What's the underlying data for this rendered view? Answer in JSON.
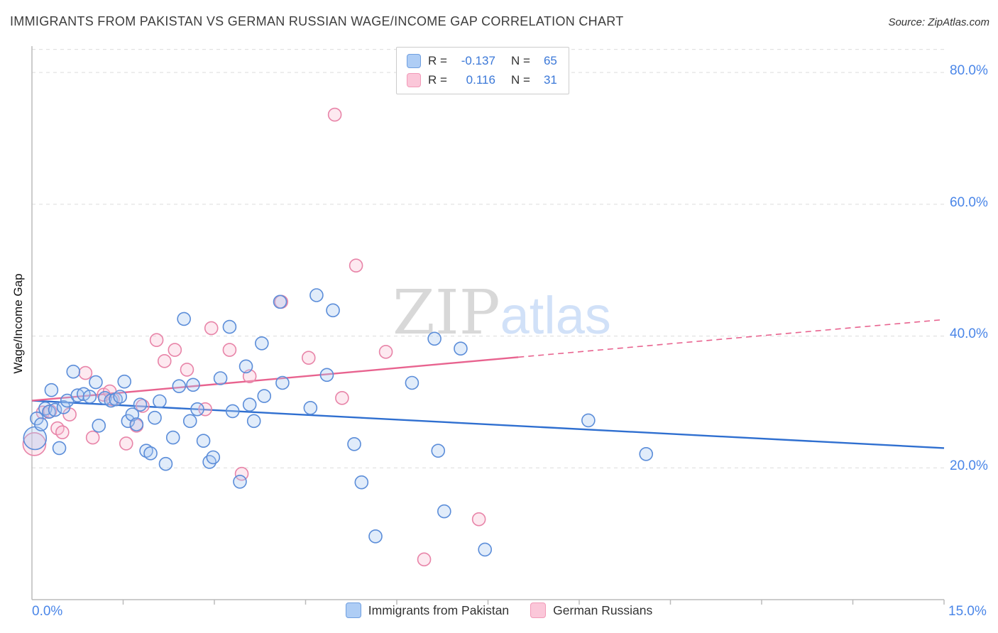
{
  "header": {
    "title": "IMMIGRANTS FROM PAKISTAN VS GERMAN RUSSIAN WAGE/INCOME GAP CORRELATION CHART",
    "source": "Source: ZipAtlas.com"
  },
  "watermark": {
    "part1": "ZIP",
    "part2": "atlas"
  },
  "stats_legend": {
    "rows": [
      {
        "r_label": "R =",
        "r_value": "-0.137",
        "n_label": "N =",
        "n_value": "65"
      },
      {
        "r_label": "R =",
        "r_value": "0.116",
        "n_label": "N =",
        "n_value": "31"
      }
    ]
  },
  "axes": {
    "ylabel": "Wage/Income Gap",
    "x_first_label": "0.0%",
    "x_last_label": "15.0%",
    "y_ticks": [
      {
        "value": 80,
        "label": "80.0%"
      },
      {
        "value": 60,
        "label": "60.0%"
      },
      {
        "value": 40,
        "label": "40.0%"
      },
      {
        "value": 20,
        "label": "20.0%"
      }
    ]
  },
  "bottom_legend": [
    {
      "label": "Immigrants from Pakistan"
    },
    {
      "label": "German Russians"
    }
  ],
  "colors": {
    "accent_text": "#3B78D8",
    "axis_tick_text": "#4A86E8",
    "grid": "#DCDCDC",
    "axis_line": "#BBBBBB",
    "blue_fill": "#A8C8F0",
    "blue_stroke": "#5B8DD9",
    "pink_fill": "#F9C0D4",
    "pink_stroke": "#E884A8",
    "trend_blue": "#2F6FD0",
    "trend_pink": "#E8638F",
    "watermark_zip": "#D2D2D2",
    "watermark_atlas": "#CADCF7"
  },
  "chart_data": {
    "type": "scatter",
    "title": "IMMIGRANTS FROM PAKISTAN VS GERMAN RUSSIAN WAGE/INCOME GAP CORRELATION CHART",
    "xlabel": "",
    "ylabel": "Wage/Income Gap",
    "xlim": [
      0,
      15
    ],
    "ylim": [
      0,
      84
    ],
    "grid": true,
    "legend_position": "bottom",
    "series": [
      {
        "name": "Immigrants from Pakistan",
        "R": -0.137,
        "N": 65,
        "fill": "#A8C8F0",
        "stroke": "#5B8DD9",
        "points": [
          [
            0.05,
            24.5,
            16
          ],
          [
            0.08,
            27.5,
            9
          ],
          [
            0.15,
            26.6,
            9
          ],
          [
            0.22,
            29.0,
            9
          ],
          [
            0.28,
            28.5,
            9
          ],
          [
            0.32,
            31.8,
            9
          ],
          [
            0.38,
            28.8,
            9
          ],
          [
            0.45,
            23.0,
            9
          ],
          [
            0.52,
            29.2,
            9
          ],
          [
            0.58,
            30.2,
            9
          ],
          [
            0.68,
            34.6,
            9
          ],
          [
            0.75,
            31.0,
            9
          ],
          [
            0.85,
            31.2,
            9
          ],
          [
            0.95,
            30.8,
            9
          ],
          [
            1.05,
            33.0,
            9
          ],
          [
            1.1,
            26.4,
            9
          ],
          [
            1.2,
            30.6,
            9
          ],
          [
            1.3,
            30.2,
            9
          ],
          [
            1.38,
            30.4,
            9
          ],
          [
            1.45,
            30.8,
            9
          ],
          [
            1.52,
            33.1,
            9
          ],
          [
            1.58,
            27.1,
            9
          ],
          [
            1.65,
            28.1,
            9
          ],
          [
            1.72,
            26.6,
            9
          ],
          [
            1.78,
            29.6,
            9
          ],
          [
            1.88,
            22.6,
            9
          ],
          [
            1.95,
            22.2,
            9
          ],
          [
            2.02,
            27.6,
            9
          ],
          [
            2.1,
            30.1,
            9
          ],
          [
            2.2,
            20.6,
            9
          ],
          [
            2.32,
            24.6,
            9
          ],
          [
            2.42,
            32.4,
            9
          ],
          [
            2.5,
            42.6,
            9
          ],
          [
            2.6,
            27.1,
            9
          ],
          [
            2.65,
            32.6,
            9
          ],
          [
            2.72,
            28.9,
            9
          ],
          [
            2.82,
            24.1,
            9
          ],
          [
            2.92,
            20.9,
            9
          ],
          [
            2.98,
            21.6,
            9
          ],
          [
            3.1,
            33.6,
            9
          ],
          [
            3.25,
            41.4,
            9
          ],
          [
            3.3,
            28.6,
            9
          ],
          [
            3.42,
            17.9,
            9
          ],
          [
            3.52,
            35.4,
            9
          ],
          [
            3.58,
            29.6,
            9
          ],
          [
            3.65,
            27.1,
            9
          ],
          [
            3.78,
            38.9,
            9
          ],
          [
            3.82,
            30.9,
            9
          ],
          [
            4.08,
            45.2,
            9
          ],
          [
            4.12,
            32.9,
            9
          ],
          [
            4.58,
            29.1,
            9
          ],
          [
            4.68,
            46.2,
            9
          ],
          [
            4.85,
            34.1,
            9
          ],
          [
            4.95,
            43.9,
            9
          ],
          [
            5.3,
            23.6,
            9
          ],
          [
            5.42,
            17.8,
            9
          ],
          [
            5.65,
            9.6,
            9
          ],
          [
            6.25,
            32.9,
            9
          ],
          [
            6.62,
            39.6,
            9
          ],
          [
            6.68,
            22.6,
            9
          ],
          [
            6.78,
            13.4,
            9
          ],
          [
            7.05,
            38.1,
            9
          ],
          [
            7.45,
            7.6,
            9
          ],
          [
            9.15,
            27.2,
            9
          ],
          [
            10.1,
            22.1,
            9
          ]
        ]
      },
      {
        "name": "German Russians",
        "R": 0.116,
        "N": 31,
        "fill": "#F9C0D4",
        "stroke": "#E884A8",
        "points": [
          [
            0.04,
            23.6,
            16
          ],
          [
            0.18,
            28.4,
            9
          ],
          [
            0.3,
            28.6,
            9
          ],
          [
            0.42,
            26.0,
            9
          ],
          [
            0.5,
            25.4,
            9
          ],
          [
            0.62,
            28.1,
            9
          ],
          [
            0.88,
            34.4,
            9
          ],
          [
            1.0,
            24.6,
            9
          ],
          [
            1.18,
            31.1,
            9
          ],
          [
            1.28,
            31.6,
            9
          ],
          [
            1.33,
            30.4,
            9
          ],
          [
            1.55,
            23.7,
            9
          ],
          [
            1.72,
            26.4,
            9
          ],
          [
            1.82,
            29.4,
            9
          ],
          [
            2.05,
            39.4,
            9
          ],
          [
            2.18,
            36.2,
            9
          ],
          [
            2.35,
            37.9,
            9
          ],
          [
            2.55,
            34.9,
            9
          ],
          [
            2.85,
            28.9,
            9
          ],
          [
            2.95,
            41.2,
            9
          ],
          [
            3.25,
            37.9,
            9
          ],
          [
            3.45,
            19.1,
            9
          ],
          [
            3.58,
            33.9,
            9
          ],
          [
            4.1,
            45.2,
            9
          ],
          [
            4.55,
            36.7,
            9
          ],
          [
            4.98,
            73.6,
            9
          ],
          [
            5.1,
            30.6,
            9
          ],
          [
            5.33,
            50.7,
            9
          ],
          [
            5.82,
            37.6,
            9
          ],
          [
            6.45,
            6.1,
            9
          ],
          [
            7.35,
            12.2,
            9
          ]
        ]
      }
    ],
    "trend_lines": [
      {
        "series": "Immigrants from Pakistan",
        "start": [
          0,
          30.2
        ],
        "end": [
          15,
          23.0
        ],
        "style": "solid"
      },
      {
        "series": "German Russians",
        "start": [
          0,
          30.2
        ],
        "end": [
          8,
          36.8
        ],
        "style": "solid"
      },
      {
        "series": "German Russians",
        "start": [
          8,
          36.8
        ],
        "end": [
          15,
          42.5
        ],
        "style": "dashed"
      }
    ]
  }
}
